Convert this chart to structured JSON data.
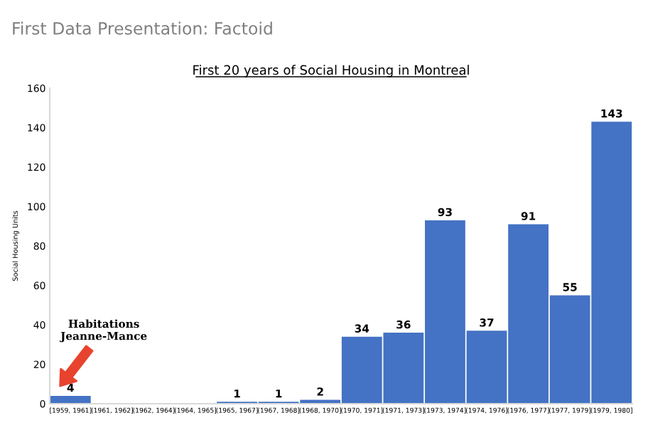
{
  "chart_data": {
    "type": "bar",
    "title": "First 20 years of Social Housing in Montreal",
    "subtitle": "First Data Presentation: Factoid",
    "ylabel": "Social Housing Units",
    "categories": [
      "[1959, 1961]",
      "(1961, 1962]",
      "(1962, 1964]",
      "(1964, 1965]",
      "(1965, 1967]",
      "(1967, 1968]",
      "(1968, 1970]",
      "(1970, 1971]",
      "(1971, 1973]",
      "(1973, 1974]",
      "(1974, 1976]",
      "(1976, 1977]",
      "(1977, 1979]",
      "(1979, 1980]"
    ],
    "values": [
      4,
      0,
      0,
      0,
      1,
      1,
      2,
      34,
      36,
      93,
      37,
      91,
      55,
      143
    ],
    "value_labels": [
      "4",
      null,
      null,
      null,
      "1",
      "1",
      "2",
      "34",
      "36",
      "93",
      "37",
      "91",
      "55",
      "143"
    ],
    "color": "#4472c4",
    "ylim": [
      0,
      160
    ],
    "yticks": [
      0,
      20,
      40,
      60,
      80,
      100,
      120,
      140,
      160
    ],
    "grid": false,
    "legend": false,
    "annotations": [
      "Habitations\nJeanne-Mance"
    ]
  }
}
